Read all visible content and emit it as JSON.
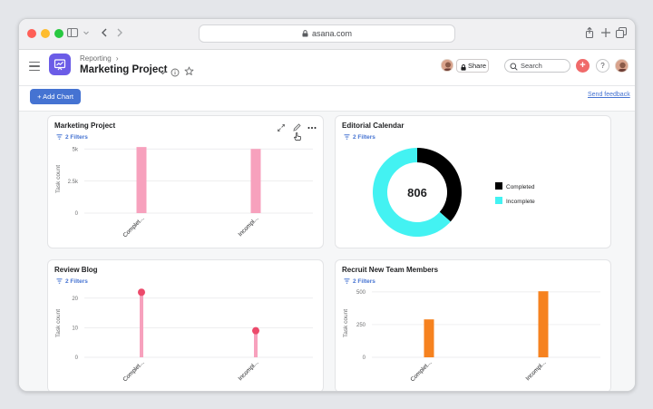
{
  "browser": {
    "url": "asana.com"
  },
  "header": {
    "breadcrumb": "Reporting",
    "breadcrumb_chevron": "›",
    "project_title": "Marketing Project",
    "share_label": "Share",
    "search_placeholder": "Search",
    "plus_label": "+",
    "help_label": "?"
  },
  "toolbar": {
    "add_chart_label": "+ Add Chart",
    "send_feedback_label": "Send feedback"
  },
  "colors": {
    "brand_blue": "#4573d2",
    "project_icon": "#6b5ce7",
    "pink": "#f7a1bd",
    "pink_point": "#ec4a6b",
    "cyan": "#43f2f2",
    "black": "#000000",
    "orange": "#f6821f"
  },
  "cards": [
    {
      "title": "Marketing Project",
      "filters": "2 Filters",
      "ylabel": "Task count"
    },
    {
      "title": "Editorial Calendar",
      "filters": "2 Filters",
      "center_value": "806"
    },
    {
      "title": "Review Blog",
      "filters": "2 Filters",
      "ylabel": "Task count"
    },
    {
      "title": "Recruit New Team Members",
      "filters": "2 Filters",
      "ylabel": "Task count"
    }
  ],
  "chart_data": [
    {
      "type": "bar",
      "title": "Marketing Project",
      "ylabel": "Task count",
      "categories": [
        "Complet...",
        "Incompl..."
      ],
      "values": [
        5150,
        5000
      ],
      "ylim": [
        0,
        5300
      ],
      "yticks": [
        0,
        2500,
        5000
      ],
      "ytick_labels": [
        "0",
        "2.5k",
        "5k"
      ],
      "color": "#f7a1bd"
    },
    {
      "type": "pie",
      "title": "Editorial Calendar",
      "total": 806,
      "labels": [
        "Completed",
        "Incomplete"
      ],
      "values": [
        294,
        512
      ],
      "colors": [
        "#000000",
        "#43f2f2"
      ],
      "legend": "right"
    },
    {
      "type": "line",
      "title": "Review Blog",
      "ylabel": "Task count",
      "categories": [
        "Complet...",
        "Incompl..."
      ],
      "values": [
        22,
        9
      ],
      "ylim": [
        0,
        23
      ],
      "yticks": [
        0,
        10,
        20
      ],
      "ytick_labels": [
        "0",
        "10",
        "20"
      ],
      "color": "#f7a1bd"
    },
    {
      "type": "bar",
      "title": "Recruit New Team Members",
      "ylabel": "Task count",
      "categories": [
        "Complet...",
        "Incompl..."
      ],
      "values": [
        290,
        505
      ],
      "ylim": [
        0,
        520
      ],
      "yticks": [
        0,
        250,
        500
      ],
      "ytick_labels": [
        "0",
        "250",
        "500"
      ],
      "color": "#f6821f"
    }
  ]
}
